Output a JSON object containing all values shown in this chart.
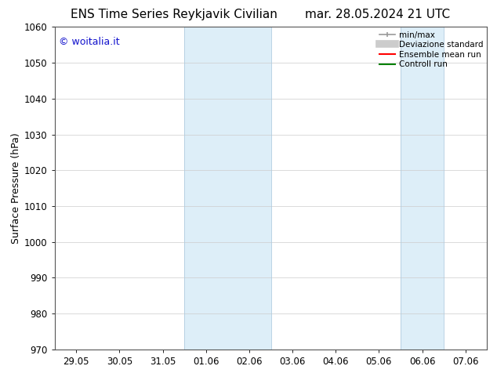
{
  "title_left": "ENS Time Series Reykjavik Civilian",
  "title_right": "mar. 28.05.2024 21 UTC",
  "ylabel": "Surface Pressure (hPa)",
  "ylim": [
    970,
    1060
  ],
  "yticks": [
    970,
    980,
    990,
    1000,
    1010,
    1020,
    1030,
    1040,
    1050,
    1060
  ],
  "xtick_labels": [
    "29.05",
    "30.05",
    "31.05",
    "01.06",
    "02.06",
    "03.06",
    "04.06",
    "05.06",
    "06.06",
    "07.06"
  ],
  "xtick_positions": [
    0,
    1,
    2,
    3,
    4,
    5,
    6,
    7,
    8,
    9
  ],
  "shaded_bands": [
    {
      "x_start": 3,
      "x_end": 5
    },
    {
      "x_start": 8,
      "x_end": 9
    }
  ],
  "shade_color": "#ddeef8",
  "watermark": "© woitalia.it",
  "watermark_color": "#1111cc",
  "legend_items": [
    {
      "label": "min/max",
      "color": "#aaaaaa",
      "lw": 1.2
    },
    {
      "label": "Deviazione standard",
      "color": "#cccccc",
      "lw": 7
    },
    {
      "label": "Ensemble mean run",
      "color": "red",
      "lw": 1.5
    },
    {
      "label": "Controll run",
      "color": "green",
      "lw": 1.5
    }
  ],
  "bg_color": "#ffffff",
  "grid_color": "#cccccc",
  "title_fontsize": 11,
  "tick_fontsize": 8.5,
  "ylabel_fontsize": 9,
  "watermark_fontsize": 9,
  "legend_fontsize": 7.5
}
